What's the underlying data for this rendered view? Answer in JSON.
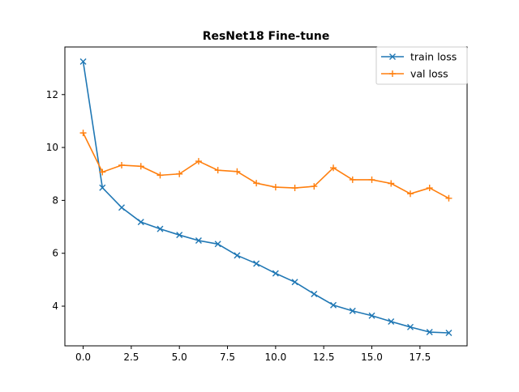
{
  "chart_data": {
    "type": "line",
    "title": "ResNet18 Fine-tune",
    "xlabel": "",
    "ylabel": "",
    "xlim": [
      -0.95,
      19.95
    ],
    "ylim": [
      2.5,
      13.8
    ],
    "x_ticks": [
      0.0,
      2.5,
      5.0,
      7.5,
      10.0,
      12.5,
      15.0,
      17.5
    ],
    "x_tick_labels": [
      "0.0",
      "2.5",
      "5.0",
      "7.5",
      "10.0",
      "12.5",
      "15.0",
      "17.5"
    ],
    "y_ticks": [
      4,
      6,
      8,
      10,
      12
    ],
    "y_tick_labels": [
      "4",
      "6",
      "8",
      "10",
      "12"
    ],
    "grid": false,
    "legend_position": "top-right",
    "x": [
      0,
      1,
      2,
      3,
      4,
      5,
      6,
      7,
      8,
      9,
      10,
      11,
      12,
      13,
      14,
      15,
      16,
      17,
      18,
      19
    ],
    "series": [
      {
        "name": "train loss",
        "color": "#1f77b4",
        "marker": "x",
        "values": [
          13.25,
          8.48,
          7.73,
          7.18,
          6.92,
          6.69,
          6.48,
          6.35,
          5.92,
          5.61,
          5.24,
          4.91,
          4.46,
          4.04,
          3.82,
          3.64,
          3.42,
          3.21,
          3.02,
          2.99
        ]
      },
      {
        "name": "val loss",
        "color": "#ff7f0e",
        "marker": "+",
        "values": [
          10.55,
          9.07,
          9.33,
          9.29,
          8.95,
          9.0,
          9.48,
          9.14,
          9.09,
          8.65,
          8.5,
          8.47,
          8.53,
          9.23,
          8.78,
          8.78,
          8.64,
          8.25,
          8.47,
          8.08
        ]
      }
    ]
  }
}
